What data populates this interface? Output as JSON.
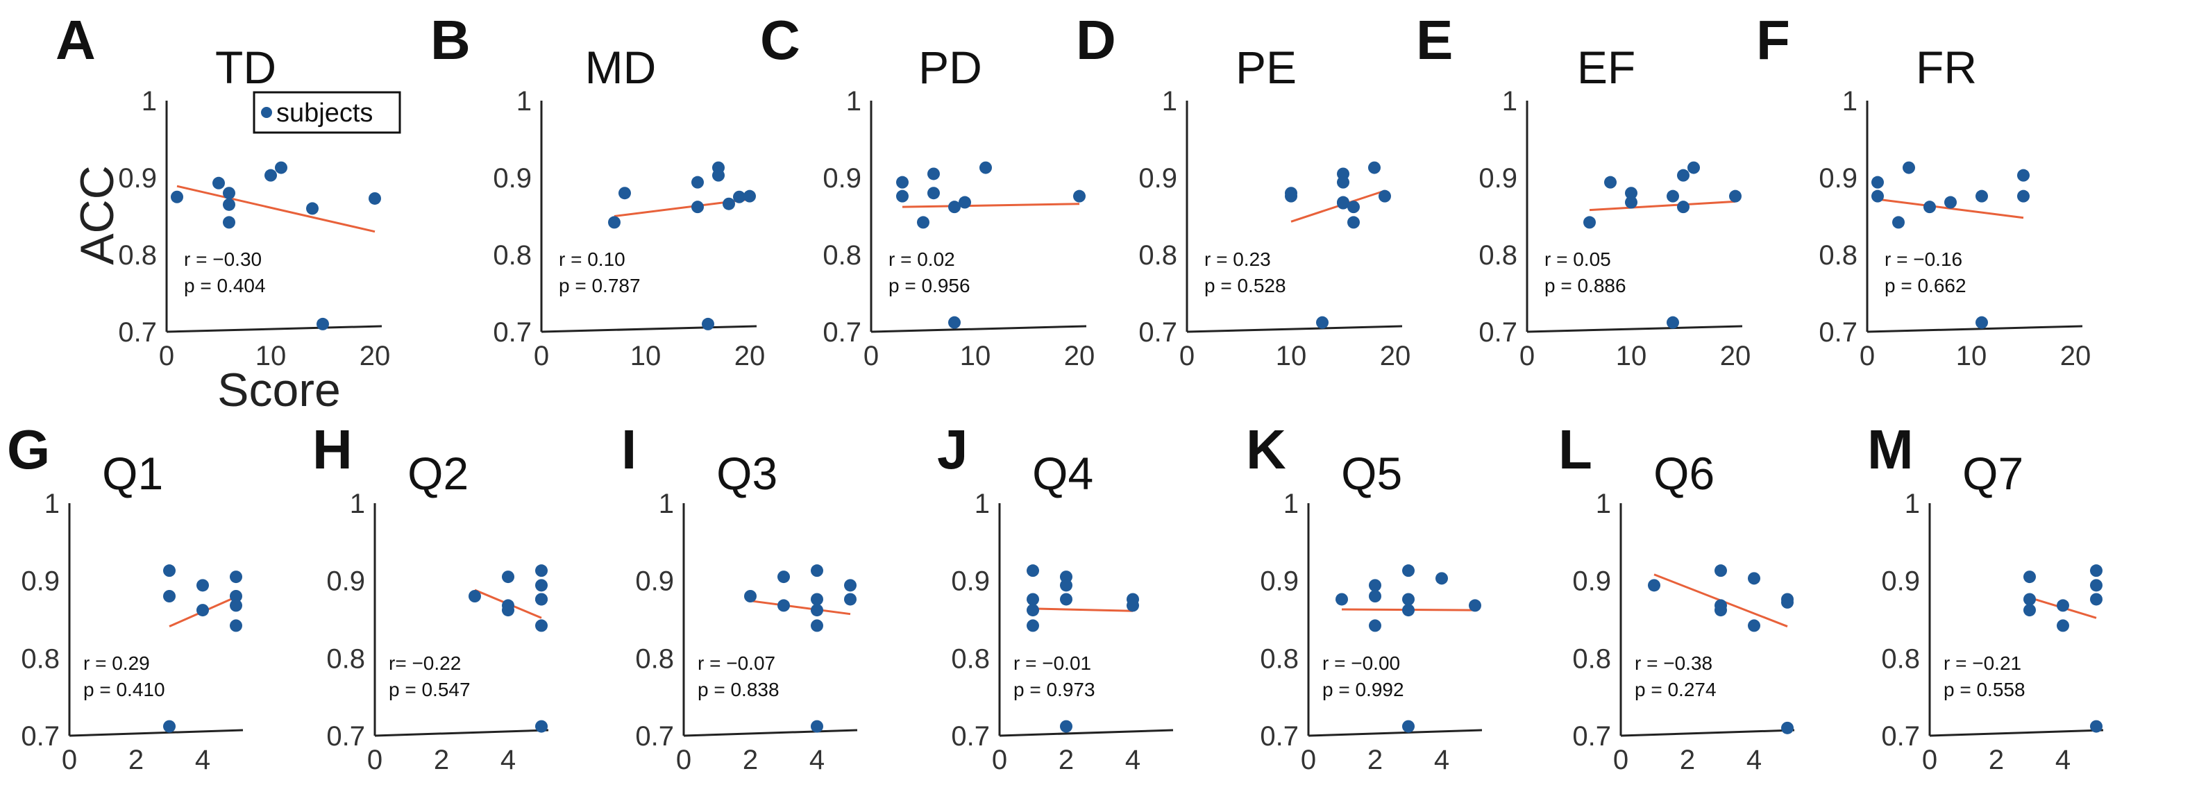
{
  "chart_data": [
    {
      "label": "A",
      "title": "TD",
      "type": "scatter",
      "xlim": [
        0,
        20
      ],
      "xticks": [
        0,
        10,
        20
      ],
      "ylim": [
        0.7,
        1
      ],
      "yticks": [
        0.7,
        0.8,
        0.9,
        1
      ],
      "x": [
        1,
        5,
        6,
        6,
        6,
        10,
        11,
        14,
        15,
        20
      ],
      "y": [
        0.875,
        0.893,
        0.88,
        0.865,
        0.842,
        0.903,
        0.913,
        0.86,
        0.71,
        0.873
      ],
      "fit": {
        "x": [
          1,
          20
        ],
        "y": [
          0.889,
          0.83
        ]
      },
      "r": "r = −0.30",
      "p": "p = 0.404"
    },
    {
      "label": "B",
      "title": "MD",
      "type": "scatter",
      "xlim": [
        0,
        20
      ],
      "xticks": [
        0,
        10,
        20
      ],
      "ylim": [
        0.7,
        1
      ],
      "yticks": [
        0.7,
        0.8,
        0.9,
        1
      ],
      "x": [
        7,
        8,
        15,
        15,
        16,
        17,
        17,
        18,
        19,
        20
      ],
      "y": [
        0.842,
        0.88,
        0.894,
        0.862,
        0.71,
        0.913,
        0.903,
        0.866,
        0.875,
        0.876
      ],
      "fit": {
        "x": [
          7,
          20
        ],
        "y": [
          0.85,
          0.872
        ]
      },
      "r": "r = 0.10",
      "p": "p = 0.787"
    },
    {
      "label": "C",
      "title": "PD",
      "type": "scatter",
      "xlim": [
        0,
        20
      ],
      "xticks": [
        0,
        10,
        20
      ],
      "ylim": [
        0.7,
        1
      ],
      "yticks": [
        0.7,
        0.8,
        0.9,
        1
      ],
      "x": [
        3,
        3,
        5,
        6,
        6,
        8,
        8,
        9,
        11,
        20
      ],
      "y": [
        0.894,
        0.876,
        0.842,
        0.905,
        0.88,
        0.862,
        0.712,
        0.868,
        0.913,
        0.876
      ],
      "fit": {
        "x": [
          3,
          20
        ],
        "y": [
          0.862,
          0.866
        ]
      },
      "r": "r = 0.02",
      "p": "p = 0.956"
    },
    {
      "label": "D",
      "title": "PE",
      "type": "scatter",
      "xlim": [
        0,
        20
      ],
      "xticks": [
        0,
        10,
        20
      ],
      "ylim": [
        0.7,
        1
      ],
      "yticks": [
        0.7,
        0.8,
        0.9,
        1
      ],
      "x": [
        10,
        10,
        13,
        15,
        15,
        15,
        15,
        16,
        16,
        18,
        19
      ],
      "y": [
        0.88,
        0.876,
        0.712,
        0.905,
        0.894,
        0.868,
        0.867,
        0.862,
        0.842,
        0.913,
        0.876
      ],
      "fit": {
        "x": [
          10,
          19
        ],
        "y": [
          0.843,
          0.883
        ]
      },
      "r": "r = 0.23",
      "p": "p = 0.528"
    },
    {
      "label": "E",
      "title": "EF",
      "type": "scatter",
      "xlim": [
        0,
        20
      ],
      "xticks": [
        0,
        10,
        20
      ],
      "ylim": [
        0.7,
        1
      ],
      "yticks": [
        0.7,
        0.8,
        0.9,
        1
      ],
      "x": [
        6,
        8,
        10,
        10,
        14,
        14,
        15,
        15,
        16,
        20
      ],
      "y": [
        0.842,
        0.894,
        0.88,
        0.868,
        0.712,
        0.876,
        0.903,
        0.862,
        0.913,
        0.876
      ],
      "fit": {
        "x": [
          6,
          20
        ],
        "y": [
          0.858,
          0.869
        ]
      },
      "r": "r = 0.05",
      "p": "p = 0.886"
    },
    {
      "label": "F",
      "title": "FR",
      "type": "scatter",
      "xlim": [
        0,
        20
      ],
      "xticks": [
        0,
        10,
        20
      ],
      "ylim": [
        0.7,
        1
      ],
      "yticks": [
        0.7,
        0.8,
        0.9,
        1
      ],
      "x": [
        1,
        1,
        3,
        4,
        6,
        8,
        11,
        11,
        15,
        15
      ],
      "y": [
        0.894,
        0.876,
        0.842,
        0.913,
        0.862,
        0.868,
        0.876,
        0.712,
        0.903,
        0.876
      ],
      "fit": {
        "x": [
          1,
          15
        ],
        "y": [
          0.872,
          0.848
        ]
      },
      "r": "r = −0.16",
      "p": "p = 0.662"
    },
    {
      "label": "G",
      "title": "Q1",
      "type": "scatter",
      "xlim": [
        0,
        5
      ],
      "xticks": [
        0,
        2,
        4
      ],
      "ylim": [
        0.7,
        1
      ],
      "yticks": [
        0.7,
        0.8,
        0.9,
        1
      ],
      "x": [
        3,
        3,
        3,
        4,
        4,
        5,
        5,
        5,
        5
      ],
      "y": [
        0.913,
        0.88,
        0.712,
        0.894,
        0.862,
        0.905,
        0.88,
        0.868,
        0.842
      ],
      "fit": {
        "x": [
          3,
          5
        ],
        "y": [
          0.841,
          0.879
        ]
      },
      "r": "r = 0.29",
      "p": "p = 0.410"
    },
    {
      "label": "H",
      "title": "Q2",
      "type": "scatter",
      "xlim": [
        0,
        5
      ],
      "xticks": [
        0,
        2,
        4
      ],
      "ylim": [
        0.7,
        1
      ],
      "yticks": [
        0.7,
        0.8,
        0.9,
        1
      ],
      "x": [
        3,
        4,
        4,
        4,
        5,
        5,
        5,
        5,
        5,
        5
      ],
      "y": [
        0.88,
        0.905,
        0.868,
        0.862,
        0.913,
        0.894,
        0.876,
        0.842,
        0.712,
        0.876
      ],
      "fit": {
        "x": [
          3,
          5
        ],
        "y": [
          0.888,
          0.852
        ]
      },
      "r": "r= −0.22",
      "p": "p = 0.547"
    },
    {
      "label": "I",
      "title": "Q3",
      "type": "scatter",
      "xlim": [
        0,
        5
      ],
      "xticks": [
        0,
        2,
        4
      ],
      "ylim": [
        0.7,
        1
      ],
      "yticks": [
        0.7,
        0.8,
        0.9,
        1
      ],
      "x": [
        2,
        3,
        3,
        4,
        4,
        4,
        4,
        4,
        5,
        5
      ],
      "y": [
        0.88,
        0.905,
        0.868,
        0.913,
        0.876,
        0.862,
        0.842,
        0.712,
        0.894,
        0.876
      ],
      "fit": {
        "x": [
          2,
          5
        ],
        "y": [
          0.874,
          0.857
        ]
      },
      "r": "r = −0.07",
      "p": "p = 0.838"
    },
    {
      "label": "J",
      "title": "Q4",
      "type": "scatter",
      "xlim": [
        0,
        5
      ],
      "xticks": [
        0,
        2,
        4
      ],
      "ylim": [
        0.7,
        1
      ],
      "yticks": [
        0.7,
        0.8,
        0.9,
        1
      ],
      "x": [
        1,
        1,
        1,
        1,
        2,
        2,
        2,
        2,
        4,
        4
      ],
      "y": [
        0.913,
        0.876,
        0.862,
        0.842,
        0.905,
        0.894,
        0.876,
        0.712,
        0.876,
        0.868
      ],
      "fit": {
        "x": [
          1,
          4
        ],
        "y": [
          0.864,
          0.861
        ]
      },
      "r": "r = −0.01",
      "p": "p = 0.973"
    },
    {
      "label": "K",
      "title": "Q5",
      "type": "scatter",
      "xlim": [
        0,
        5
      ],
      "xticks": [
        0,
        2,
        4
      ],
      "ylim": [
        0.7,
        1
      ],
      "yticks": [
        0.7,
        0.8,
        0.9,
        1
      ],
      "x": [
        1,
        2,
        2,
        2,
        3,
        3,
        3,
        3,
        4,
        5
      ],
      "y": [
        0.876,
        0.894,
        0.88,
        0.842,
        0.913,
        0.876,
        0.862,
        0.712,
        0.903,
        0.868
      ],
      "fit": {
        "x": [
          1,
          5
        ],
        "y": [
          0.863,
          0.862
        ]
      },
      "r": "r = −0.00",
      "p": "p = 0.992"
    },
    {
      "label": "L",
      "title": "Q6",
      "type": "scatter",
      "xlim": [
        0,
        5
      ],
      "xticks": [
        0,
        2,
        4
      ],
      "ylim": [
        0.7,
        1
      ],
      "yticks": [
        0.7,
        0.8,
        0.9,
        1
      ],
      "x": [
        1,
        3,
        3,
        3,
        4,
        4,
        5,
        5,
        5
      ],
      "y": [
        0.894,
        0.913,
        0.868,
        0.862,
        0.903,
        0.842,
        0.876,
        0.872,
        0.71
      ],
      "fit": {
        "x": [
          1,
          5
        ],
        "y": [
          0.908,
          0.841
        ]
      },
      "r": "r = −0.38",
      "p": "p = 0.274"
    },
    {
      "label": "M",
      "title": "Q7",
      "type": "scatter",
      "xlim": [
        0,
        5
      ],
      "xticks": [
        0,
        2,
        4
      ],
      "ylim": [
        0.7,
        1
      ],
      "yticks": [
        0.7,
        0.8,
        0.9,
        1
      ],
      "x": [
        3,
        3,
        3,
        4,
        4,
        5,
        5,
        5,
        5
      ],
      "y": [
        0.905,
        0.876,
        0.862,
        0.868,
        0.842,
        0.913,
        0.894,
        0.876,
        0.712
      ],
      "fit": {
        "x": [
          3,
          5
        ],
        "y": [
          0.878,
          0.852
        ]
      },
      "r": "r = −0.21",
      "p": "p = 0.558"
    }
  ],
  "axis_labels": {
    "ylabel": "ACC",
    "xlabel": "Score"
  },
  "legend": {
    "label": "subjects"
  },
  "colors": {
    "points": "#1f5a99",
    "fit": "#e8613a",
    "axis": "#222222"
  }
}
